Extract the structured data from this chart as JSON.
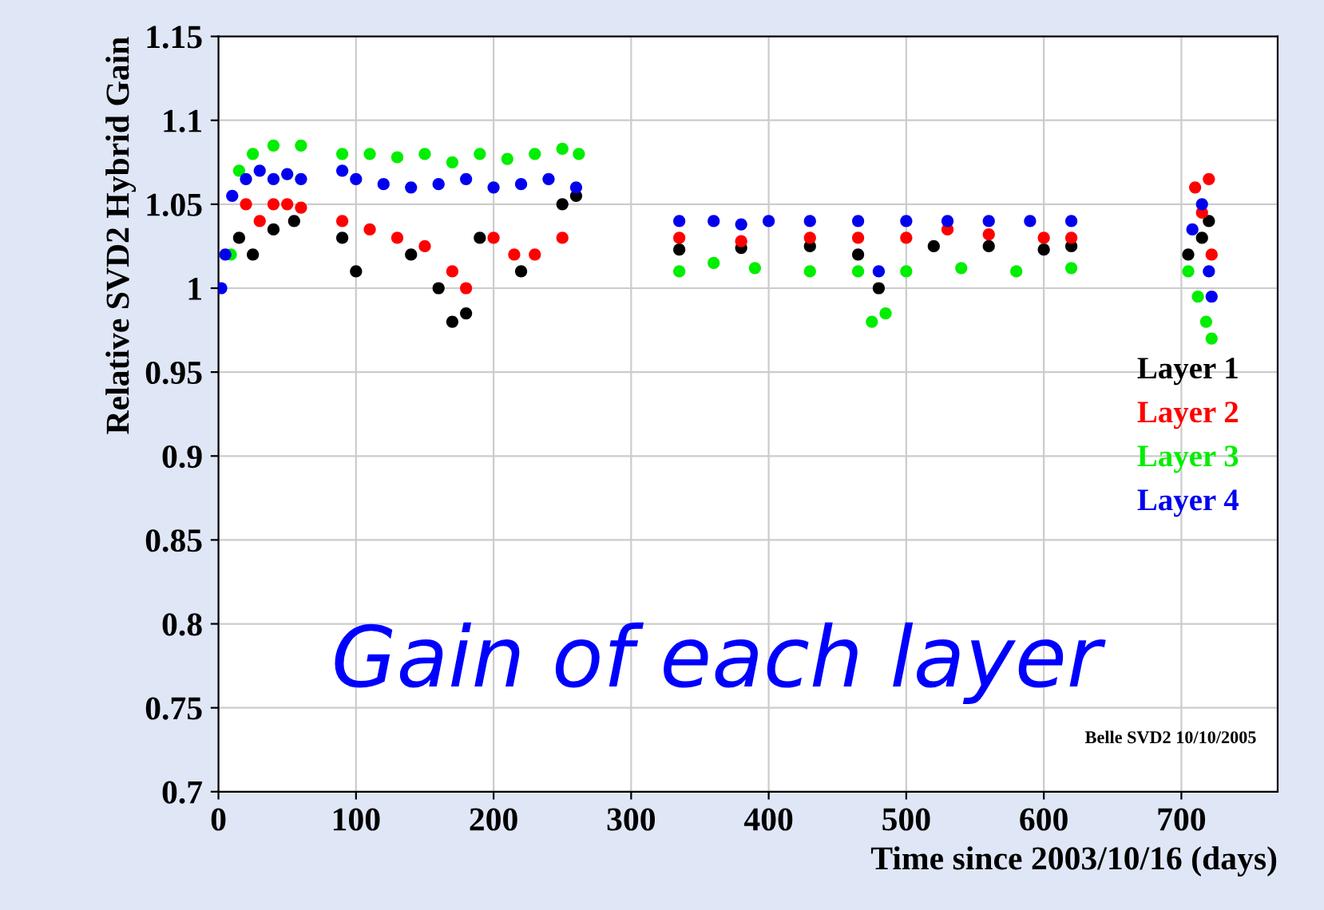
{
  "chart_data": {
    "type": "scatter",
    "xlabel": "Time since 2003/10/16 (days)",
    "ylabel": "Relative SVD2 Hybrid Gain",
    "annotations": [
      "Gain of each layer",
      "Belle SVD2 10/10/2005"
    ],
    "xlim": [
      0,
      770
    ],
    "xticks": [
      0,
      100,
      200,
      300,
      400,
      500,
      600,
      700
    ],
    "ylim": [
      0.7,
      1.15
    ],
    "yticks": [
      0.7,
      0.75,
      0.8,
      0.85,
      0.9,
      0.95,
      1,
      1.05,
      1.1,
      1.15
    ],
    "grid": true,
    "legend": "right",
    "marker": "circle",
    "series": [
      {
        "name": "Layer 1",
        "color": "#000000",
        "x": [
          15,
          25,
          40,
          55,
          90,
          100,
          140,
          160,
          170,
          180,
          190,
          220,
          250,
          260,
          335,
          380,
          430,
          465,
          480,
          520,
          560,
          600,
          620,
          705,
          715,
          720
        ],
        "values": [
          1.03,
          1.02,
          1.035,
          1.04,
          1.03,
          1.01,
          1.02,
          1.0,
          0.98,
          0.985,
          1.03,
          1.01,
          1.05,
          1.055,
          1.023,
          1.024,
          1.025,
          1.02,
          1.0,
          1.025,
          1.025,
          1.023,
          1.025,
          1.02,
          1.03,
          1.04
        ]
      },
      {
        "name": "Layer 2",
        "color": "#ff0000",
        "x": [
          20,
          30,
          40,
          50,
          60,
          90,
          110,
          130,
          150,
          170,
          180,
          200,
          215,
          230,
          250,
          335,
          380,
          430,
          465,
          500,
          530,
          560,
          600,
          620,
          710,
          715,
          720,
          722
        ],
        "values": [
          1.05,
          1.04,
          1.05,
          1.05,
          1.048,
          1.04,
          1.035,
          1.03,
          1.025,
          1.01,
          1.0,
          1.03,
          1.02,
          1.02,
          1.03,
          1.03,
          1.028,
          1.03,
          1.03,
          1.03,
          1.035,
          1.032,
          1.03,
          1.03,
          1.06,
          1.045,
          1.065,
          1.02
        ]
      },
      {
        "name": "Layer 3",
        "color": "#00ee00",
        "x": [
          9,
          15,
          25,
          40,
          60,
          90,
          110,
          130,
          150,
          170,
          190,
          210,
          230,
          250,
          262,
          335,
          360,
          390,
          430,
          465,
          475,
          485,
          500,
          540,
          580,
          620,
          705,
          712,
          718,
          722
        ],
        "values": [
          1.02,
          1.07,
          1.08,
          1.085,
          1.085,
          1.08,
          1.08,
          1.078,
          1.08,
          1.075,
          1.08,
          1.077,
          1.08,
          1.083,
          1.08,
          1.01,
          1.015,
          1.012,
          1.01,
          1.01,
          0.98,
          0.985,
          1.01,
          1.012,
          1.01,
          1.012,
          1.01,
          0.995,
          0.98,
          0.97
        ]
      },
      {
        "name": "Layer 4",
        "color": "#0000ee",
        "x": [
          2,
          5,
          10,
          20,
          30,
          40,
          50,
          60,
          90,
          100,
          120,
          140,
          160,
          180,
          200,
          220,
          240,
          260,
          335,
          360,
          380,
          400,
          430,
          465,
          480,
          500,
          530,
          560,
          590,
          620,
          708,
          715,
          720,
          722
        ],
        "values": [
          1.0,
          1.02,
          1.055,
          1.065,
          1.07,
          1.065,
          1.068,
          1.065,
          1.07,
          1.065,
          1.062,
          1.06,
          1.062,
          1.065,
          1.06,
          1.062,
          1.065,
          1.06,
          1.04,
          1.04,
          1.038,
          1.04,
          1.04,
          1.04,
          1.01,
          1.04,
          1.04,
          1.04,
          1.04,
          1.04,
          1.035,
          1.05,
          1.01,
          0.995
        ]
      }
    ]
  }
}
